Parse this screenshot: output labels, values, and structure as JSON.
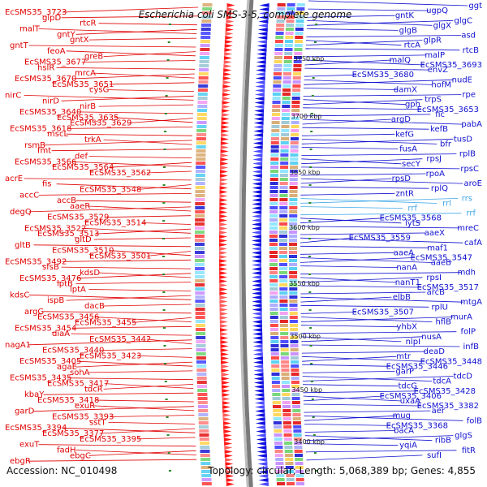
{
  "title": "Escherichia coli SMS-3-5, complete genome",
  "footer": {
    "accession": "Accession: NC_010498",
    "topology": "Topology: circular; Length: 5,068,389 bp; Genes: 4,855"
  },
  "colors": {
    "left_genes": "#e00000",
    "right_genes": "#1010d0",
    "rna_genes": "#40a8e8",
    "tick_marks": "#2a8a2a"
  },
  "kbp_ticks": [
    "3750 kbp",
    "3700 kbp",
    "3650 kbp",
    "3600 kbp",
    "3550 kbp",
    "3500 kbp",
    "3450 kbp",
    "3400 kbp"
  ],
  "left_labels": [
    "EcSMS35_3723",
    "glpD",
    "rtcR",
    "malT",
    "gntY",
    "gntX",
    "gntT",
    "feoA",
    "greB",
    "EcSMS35_3677",
    "hslR",
    "mrcA",
    "EcSMS35_3670",
    "EcSMS35_3651",
    "cysG",
    "nirC",
    "nirD",
    "nirB",
    "EcSMS35_3640",
    "EcSMS35_3635",
    "EcSMS35_3629",
    "EcSMS35_3618",
    "mscL",
    "trkA",
    "rsmB",
    "fmt",
    "def",
    "EcSMS35_3566",
    "EcSMS35_3564",
    "EcSMS35_3562",
    "acrE",
    "fis",
    "EcSMS35_3548",
    "accC",
    "accB",
    "aaeR",
    "degQ",
    "EcSMS35_3529",
    "EcSMS35_3514",
    "EcSMS35_3522",
    "EcSMS35_3513",
    "gltD",
    "gltB",
    "EcSMS35_3510",
    "EcSMS35_3501",
    "EcSMS35_3492",
    "sfsB",
    "kdsD",
    "EcSMS35_3476",
    "lptB",
    "lptA",
    "kdsC",
    "ispB",
    "dacB",
    "argG",
    "EcSMS35_3456",
    "EcSMS35_3455",
    "EcSMS35_3454",
    "diaA",
    "EcSMS35_3442",
    "nagA1",
    "EcSMS35_3440",
    "EcSMS35_3423",
    "EcSMS35_3405",
    "agaE",
    "sohA",
    "EcSMS35_3435",
    "EcSMS35_3417",
    "tdcR",
    "kbaY",
    "EcSMS35_3418",
    "exuR",
    "garD",
    "EcSMS35_3393",
    "sstT",
    "EcSMS35_3394",
    "EcSMS35_3377",
    "EcSMS35_3395",
    "exuT",
    "fadH",
    "ebgC",
    "ebgR"
  ],
  "right_labels": [
    "ggt",
    "ugpQ",
    "gntK",
    "glgC",
    "glgX",
    "glgB",
    "asd",
    "glpR",
    "rtcA",
    "rtcB",
    "malP",
    "malQ",
    "EcSMS35_3693",
    "envZ",
    "EcSMS35_3680",
    "nudE",
    "hofM",
    "damX",
    "rpe",
    "trpS",
    "gph",
    "EcSMS35_3653",
    "fic",
    "argD",
    "pabA",
    "kefB",
    "kefG",
    "tusD",
    "bfr",
    "fusA",
    "rplB",
    "rpsJ",
    "secY",
    "rpsC",
    "rpoA",
    "rpsD",
    "aroE",
    "rplQ",
    "zntR",
    "rrs",
    "rrl",
    "rrf",
    "rrf",
    "EcSMS35_3568",
    "lytS",
    "mreC",
    "aaeX",
    "EcSMS35_3559",
    "cafA",
    "maf1",
    "aaeA",
    "EcSMS35_3547",
    "aaeB",
    "nanA",
    "mdh",
    "rpsI",
    "nanT1",
    "EcSMS35_3517",
    "arcB",
    "elbB",
    "mtgA",
    "rplU",
    "EcSMS35_3507",
    "murA",
    "hflB",
    "yhbX",
    "folP",
    "nusA",
    "nlpI",
    "infB",
    "deaD",
    "mtr",
    "EcSMS35_3448",
    "EcSMS35_3446",
    "garP",
    "tdcD",
    "tdcA",
    "tdcG",
    "EcSMS35_3428",
    "EcSMS35_3406",
    "uxaA",
    "EcSMS35_3382",
    "aer",
    "mug",
    "folB",
    "EcSMS35_3368",
    "bacA",
    "glgS",
    "ribB",
    "yqiA",
    "fitR",
    "sufI"
  ]
}
